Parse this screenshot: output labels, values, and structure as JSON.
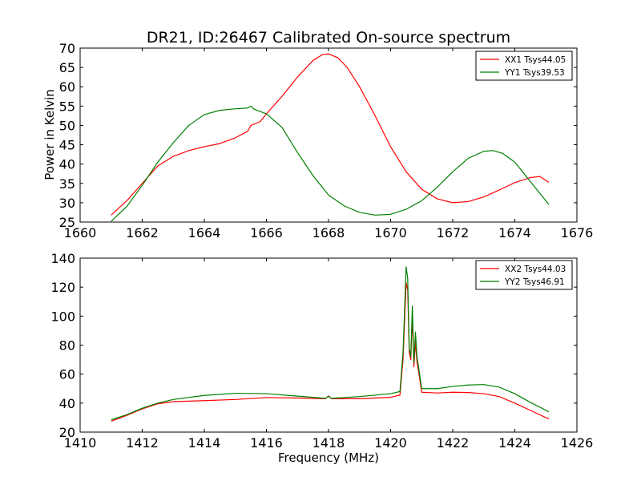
{
  "chart_data": [
    {
      "type": "line",
      "title": "DR21, ID:26467 Calibrated On-source spectrum",
      "xlabel": "",
      "ylabel": "Power in Kelvin",
      "xlim": [
        1660,
        1676
      ],
      "ylim": [
        25,
        70
      ],
      "xticks": [
        1660,
        1662,
        1664,
        1666,
        1668,
        1670,
        1672,
        1674,
        1676
      ],
      "yticks": [
        25,
        30,
        35,
        40,
        45,
        50,
        55,
        60,
        65,
        70
      ],
      "grid": false,
      "legend_position": "top-right",
      "series": [
        {
          "name": "XX1 Tsys44.05",
          "color": "#ff0000",
          "x": [
            1661.0,
            1661.5,
            1662.0,
            1662.5,
            1663.0,
            1663.5,
            1664.0,
            1664.5,
            1665.0,
            1665.4,
            1665.5,
            1665.8,
            1666.0,
            1666.5,
            1667.0,
            1667.5,
            1667.8,
            1668.0,
            1668.3,
            1668.6,
            1669.0,
            1669.5,
            1670.0,
            1670.5,
            1671.0,
            1671.5,
            1672.0,
            1672.5,
            1673.0,
            1673.5,
            1674.0,
            1674.5,
            1674.8,
            1675.1
          ],
          "values": [
            26.8,
            30.5,
            35.0,
            39.5,
            42.0,
            43.5,
            44.5,
            45.3,
            46.8,
            48.5,
            50.0,
            51.0,
            53.0,
            57.5,
            62.5,
            66.8,
            68.3,
            68.5,
            67.5,
            65.0,
            60.0,
            52.5,
            44.5,
            38.0,
            33.5,
            31.0,
            30.0,
            30.3,
            31.5,
            33.3,
            35.2,
            36.5,
            36.8,
            35.3
          ]
        },
        {
          "name": "YY1 Tsys39.53",
          "color": "#008000",
          "x": [
            1661.0,
            1661.5,
            1662.0,
            1662.5,
            1663.0,
            1663.5,
            1664.0,
            1664.5,
            1665.0,
            1665.4,
            1665.5,
            1665.6,
            1666.0,
            1666.5,
            1667.0,
            1667.5,
            1668.0,
            1668.5,
            1669.0,
            1669.5,
            1670.0,
            1670.5,
            1671.0,
            1671.5,
            1672.0,
            1672.5,
            1673.0,
            1673.3,
            1673.6,
            1674.0,
            1674.5,
            1675.1
          ],
          "values": [
            25.2,
            29.0,
            34.5,
            40.5,
            45.5,
            50.0,
            52.8,
            53.9,
            54.3,
            54.5,
            55.0,
            54.2,
            53.0,
            49.5,
            43.0,
            37.0,
            32.0,
            29.2,
            27.5,
            26.8,
            27.0,
            28.3,
            30.5,
            34.0,
            38.0,
            41.5,
            43.3,
            43.5,
            42.8,
            40.5,
            35.5,
            29.5
          ]
        }
      ]
    },
    {
      "type": "line",
      "title": "",
      "xlabel": "Frequency (MHz)",
      "ylabel": "",
      "xlim": [
        1410,
        1426
      ],
      "ylim": [
        20,
        140
      ],
      "xticks": [
        1410,
        1412,
        1414,
        1416,
        1418,
        1420,
        1422,
        1424,
        1426
      ],
      "yticks": [
        20,
        40,
        60,
        80,
        100,
        120,
        140
      ],
      "grid": false,
      "legend_position": "top-right",
      "series": [
        {
          "name": "XX2 Tsys44.03",
          "color": "#ff0000",
          "x": [
            1411.0,
            1411.5,
            1412.0,
            1412.5,
            1413.0,
            1414.0,
            1415.0,
            1416.0,
            1417.0,
            1417.9,
            1418.0,
            1418.1,
            1419.0,
            1420.0,
            1420.3,
            1420.4,
            1420.5,
            1420.55,
            1420.6,
            1420.65,
            1420.7,
            1420.75,
            1420.8,
            1420.85,
            1420.9,
            1421.0,
            1421.5,
            1422.0,
            1422.5,
            1423.0,
            1423.5,
            1424.0,
            1424.5,
            1425.1
          ],
          "values": [
            27.5,
            31.5,
            36.0,
            39.5,
            41.0,
            41.7,
            42.5,
            43.8,
            43.5,
            43.0,
            45.0,
            43.0,
            43.0,
            44.0,
            45.5,
            70.0,
            123.0,
            118.0,
            75.0,
            70.0,
            100.0,
            65.0,
            82.0,
            68.0,
            62.0,
            47.5,
            47.0,
            47.5,
            47.3,
            46.5,
            44.5,
            40.0,
            35.0,
            29.0
          ]
        },
        {
          "name": "YY2 Tsys46.91",
          "color": "#008000",
          "x": [
            1411.0,
            1411.5,
            1412.0,
            1412.5,
            1413.0,
            1414.0,
            1415.0,
            1416.0,
            1417.0,
            1417.9,
            1418.0,
            1418.1,
            1419.0,
            1420.0,
            1420.3,
            1420.4,
            1420.5,
            1420.55,
            1420.6,
            1420.65,
            1420.7,
            1420.75,
            1420.8,
            1420.85,
            1420.9,
            1421.0,
            1421.5,
            1422.0,
            1422.5,
            1423.0,
            1423.5,
            1424.0,
            1424.5,
            1425.1
          ],
          "values": [
            28.5,
            32.0,
            36.5,
            40.0,
            42.5,
            45.3,
            46.8,
            46.5,
            44.8,
            43.3,
            44.5,
            43.3,
            44.5,
            46.5,
            48.0,
            75.0,
            134.0,
            126.0,
            78.0,
            72.0,
            107.0,
            68.0,
            89.0,
            72.0,
            65.0,
            50.0,
            50.0,
            51.5,
            52.5,
            52.8,
            51.0,
            46.5,
            40.5,
            34.0
          ]
        }
      ]
    }
  ]
}
